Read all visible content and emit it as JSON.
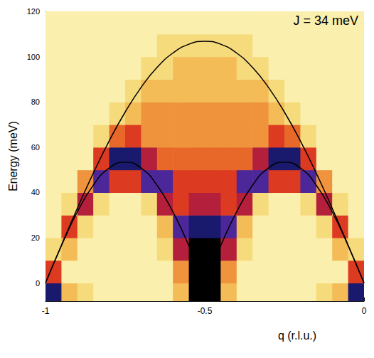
{
  "chart_data": {
    "type": "heatmap",
    "x_label": "q (r.l.u.)",
    "y_label": "Energy (meV)",
    "annotation": "J = 34 meV",
    "xlim": [
      -1,
      0
    ],
    "xticks": [
      -1,
      -0.5,
      0
    ],
    "ylim": [
      -8,
      120
    ],
    "yticks": [
      0,
      20,
      40,
      60,
      80,
      100,
      120
    ],
    "heatmap": {
      "x": [
        -0.975,
        -0.925,
        -0.875,
        -0.825,
        -0.775,
        -0.725,
        -0.675,
        -0.625,
        -0.575,
        -0.525,
        -0.475,
        -0.425,
        -0.375,
        -0.325,
        -0.275,
        -0.225,
        -0.175,
        -0.125,
        -0.075,
        -0.025
      ],
      "y": [
        -5,
        5,
        15,
        25,
        35,
        45,
        55,
        65,
        75,
        85,
        95,
        105,
        115
      ],
      "z": [
        [
          9,
          3,
          2,
          1,
          1,
          1,
          1,
          1,
          3,
          10,
          10,
          3,
          1,
          1,
          1,
          1,
          1,
          2,
          3,
          9
        ],
        [
          6,
          1,
          1,
          1,
          1,
          1,
          1,
          1,
          4,
          10,
          10,
          4,
          1,
          1,
          1,
          1,
          1,
          1,
          1,
          6
        ],
        [
          2,
          3,
          1,
          1,
          1,
          1,
          1,
          2,
          7,
          10,
          10,
          7,
          2,
          1,
          1,
          1,
          1,
          1,
          3,
          2
        ],
        [
          1,
          6,
          2,
          1,
          1,
          1,
          1,
          3,
          8,
          9,
          9,
          8,
          3,
          1,
          1,
          1,
          1,
          2,
          6,
          1
        ],
        [
          1,
          2,
          7,
          2,
          1,
          1,
          2,
          7,
          6,
          7,
          7,
          6,
          7,
          2,
          1,
          1,
          2,
          7,
          2,
          1
        ],
        [
          1,
          1,
          4,
          8,
          6,
          6,
          8,
          8,
          6,
          6,
          6,
          6,
          8,
          8,
          6,
          6,
          8,
          4,
          1,
          1
        ],
        [
          1,
          1,
          1,
          6,
          9,
          9,
          7,
          5,
          5,
          5,
          5,
          5,
          5,
          7,
          9,
          9,
          6,
          1,
          1,
          1
        ],
        [
          1,
          1,
          1,
          2,
          5,
          6,
          4,
          4,
          4,
          4,
          4,
          4,
          4,
          4,
          6,
          5,
          2,
          1,
          1,
          1
        ],
        [
          1,
          1,
          1,
          1,
          2,
          3,
          4,
          4,
          4,
          4,
          4,
          4,
          4,
          4,
          3,
          2,
          1,
          1,
          1,
          1
        ],
        [
          1,
          1,
          1,
          1,
          1,
          2,
          3,
          3,
          3,
          3,
          3,
          3,
          3,
          3,
          2,
          1,
          1,
          1,
          1,
          1
        ],
        [
          1,
          1,
          1,
          1,
          1,
          1,
          2,
          2,
          3,
          3,
          3,
          3,
          2,
          2,
          1,
          1,
          1,
          1,
          1,
          1
        ],
        [
          1,
          1,
          1,
          1,
          1,
          1,
          1,
          2,
          2,
          2,
          2,
          2,
          2,
          1,
          1,
          1,
          1,
          1,
          1,
          1
        ],
        [
          1,
          1,
          1,
          1,
          1,
          1,
          1,
          1,
          1,
          1,
          1,
          1,
          1,
          1,
          1,
          1,
          1,
          1,
          1,
          1
        ]
      ],
      "zlim": [
        0,
        10
      ],
      "colors": [
        "#fffde0",
        "#f7e58a",
        "#f3b24a",
        "#e8682a",
        "#d61c1c",
        "#2a2ab8",
        "#000000"
      ]
    },
    "series": [
      {
        "type": "line",
        "color": "#000000",
        "line_style": "solid",
        "x": [
          -1,
          -0.95,
          -0.9,
          -0.85,
          -0.8,
          -0.75,
          -0.7,
          -0.65,
          -0.6,
          -0.55,
          -0.5,
          -0.45,
          -0.4,
          -0.35,
          -0.3,
          -0.25,
          -0.2,
          -0.15,
          -0.1,
          -0.05,
          0
        ],
        "values": [
          0,
          16.5,
          31.4,
          43.2,
          50.8,
          53.4,
          50.8,
          43.2,
          31.4,
          16.5,
          0,
          16.5,
          31.4,
          43.2,
          50.8,
          53.4,
          50.8,
          43.2,
          31.4,
          16.5,
          0
        ]
      },
      {
        "type": "line",
        "color": "#000000",
        "line_style": "solid",
        "x": [
          -1,
          -0.95,
          -0.9,
          -0.85,
          -0.8,
          -0.75,
          -0.7,
          -0.65,
          -0.6,
          -0.55,
          -0.5,
          -0.45,
          -0.4,
          -0.35,
          -0.3,
          -0.25,
          -0.2,
          -0.15,
          -0.1,
          -0.05,
          0
        ],
        "values": [
          0,
          16.7,
          33.0,
          48.5,
          62.8,
          75.5,
          86.4,
          95.2,
          101.6,
          105.5,
          106.8,
          105.5,
          101.6,
          95.2,
          86.4,
          75.5,
          62.8,
          48.5,
          33.0,
          16.7,
          0
        ]
      }
    ],
    "grid": false
  }
}
